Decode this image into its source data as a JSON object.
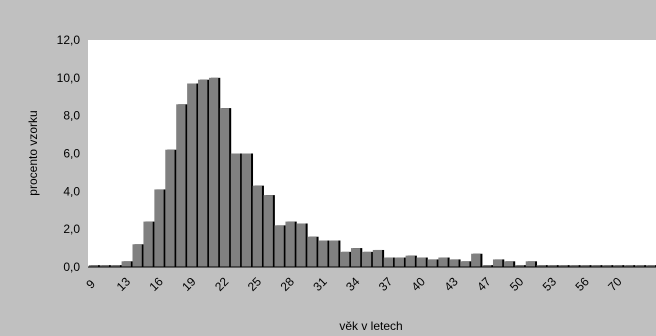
{
  "chart_data": {
    "type": "bar",
    "xlabel": "věk v letech",
    "ylabel": "procento vzorku",
    "ylim": [
      0,
      12
    ],
    "ytick_step": 2,
    "y_tick_labels": [
      "0,0",
      "2,0",
      "4,0",
      "6,0",
      "8,0",
      "10,0",
      "12,0"
    ],
    "x_tick_labels": [
      "9",
      "13",
      "16",
      "19",
      "22",
      "25",
      "28",
      "31",
      "34",
      "37",
      "40",
      "43",
      "47",
      "50",
      "53",
      "56",
      "70"
    ],
    "x_tick_every": 3,
    "grid": false,
    "colors": {
      "plot_bg": "#ffffff",
      "page_bg": "#c0c0c0",
      "bar": "#808080",
      "bar_shadow": "#000000"
    },
    "values": [
      0.1,
      0.1,
      0.1,
      0.3,
      1.2,
      2.4,
      4.1,
      6.2,
      8.6,
      9.7,
      9.9,
      10.0,
      8.4,
      6.0,
      6.0,
      4.3,
      3.8,
      2.2,
      2.4,
      2.3,
      1.6,
      1.4,
      1.4,
      0.8,
      1.0,
      0.8,
      0.9,
      0.5,
      0.5,
      0.6,
      0.5,
      0.4,
      0.5,
      0.4,
      0.3,
      0.7,
      0.1,
      0.4,
      0.3,
      0.1,
      0.3,
      0.1,
      0.1,
      0.1,
      0.1,
      0.1,
      0.1,
      0.1,
      0.1,
      0.1,
      0.1,
      0.1
    ]
  }
}
